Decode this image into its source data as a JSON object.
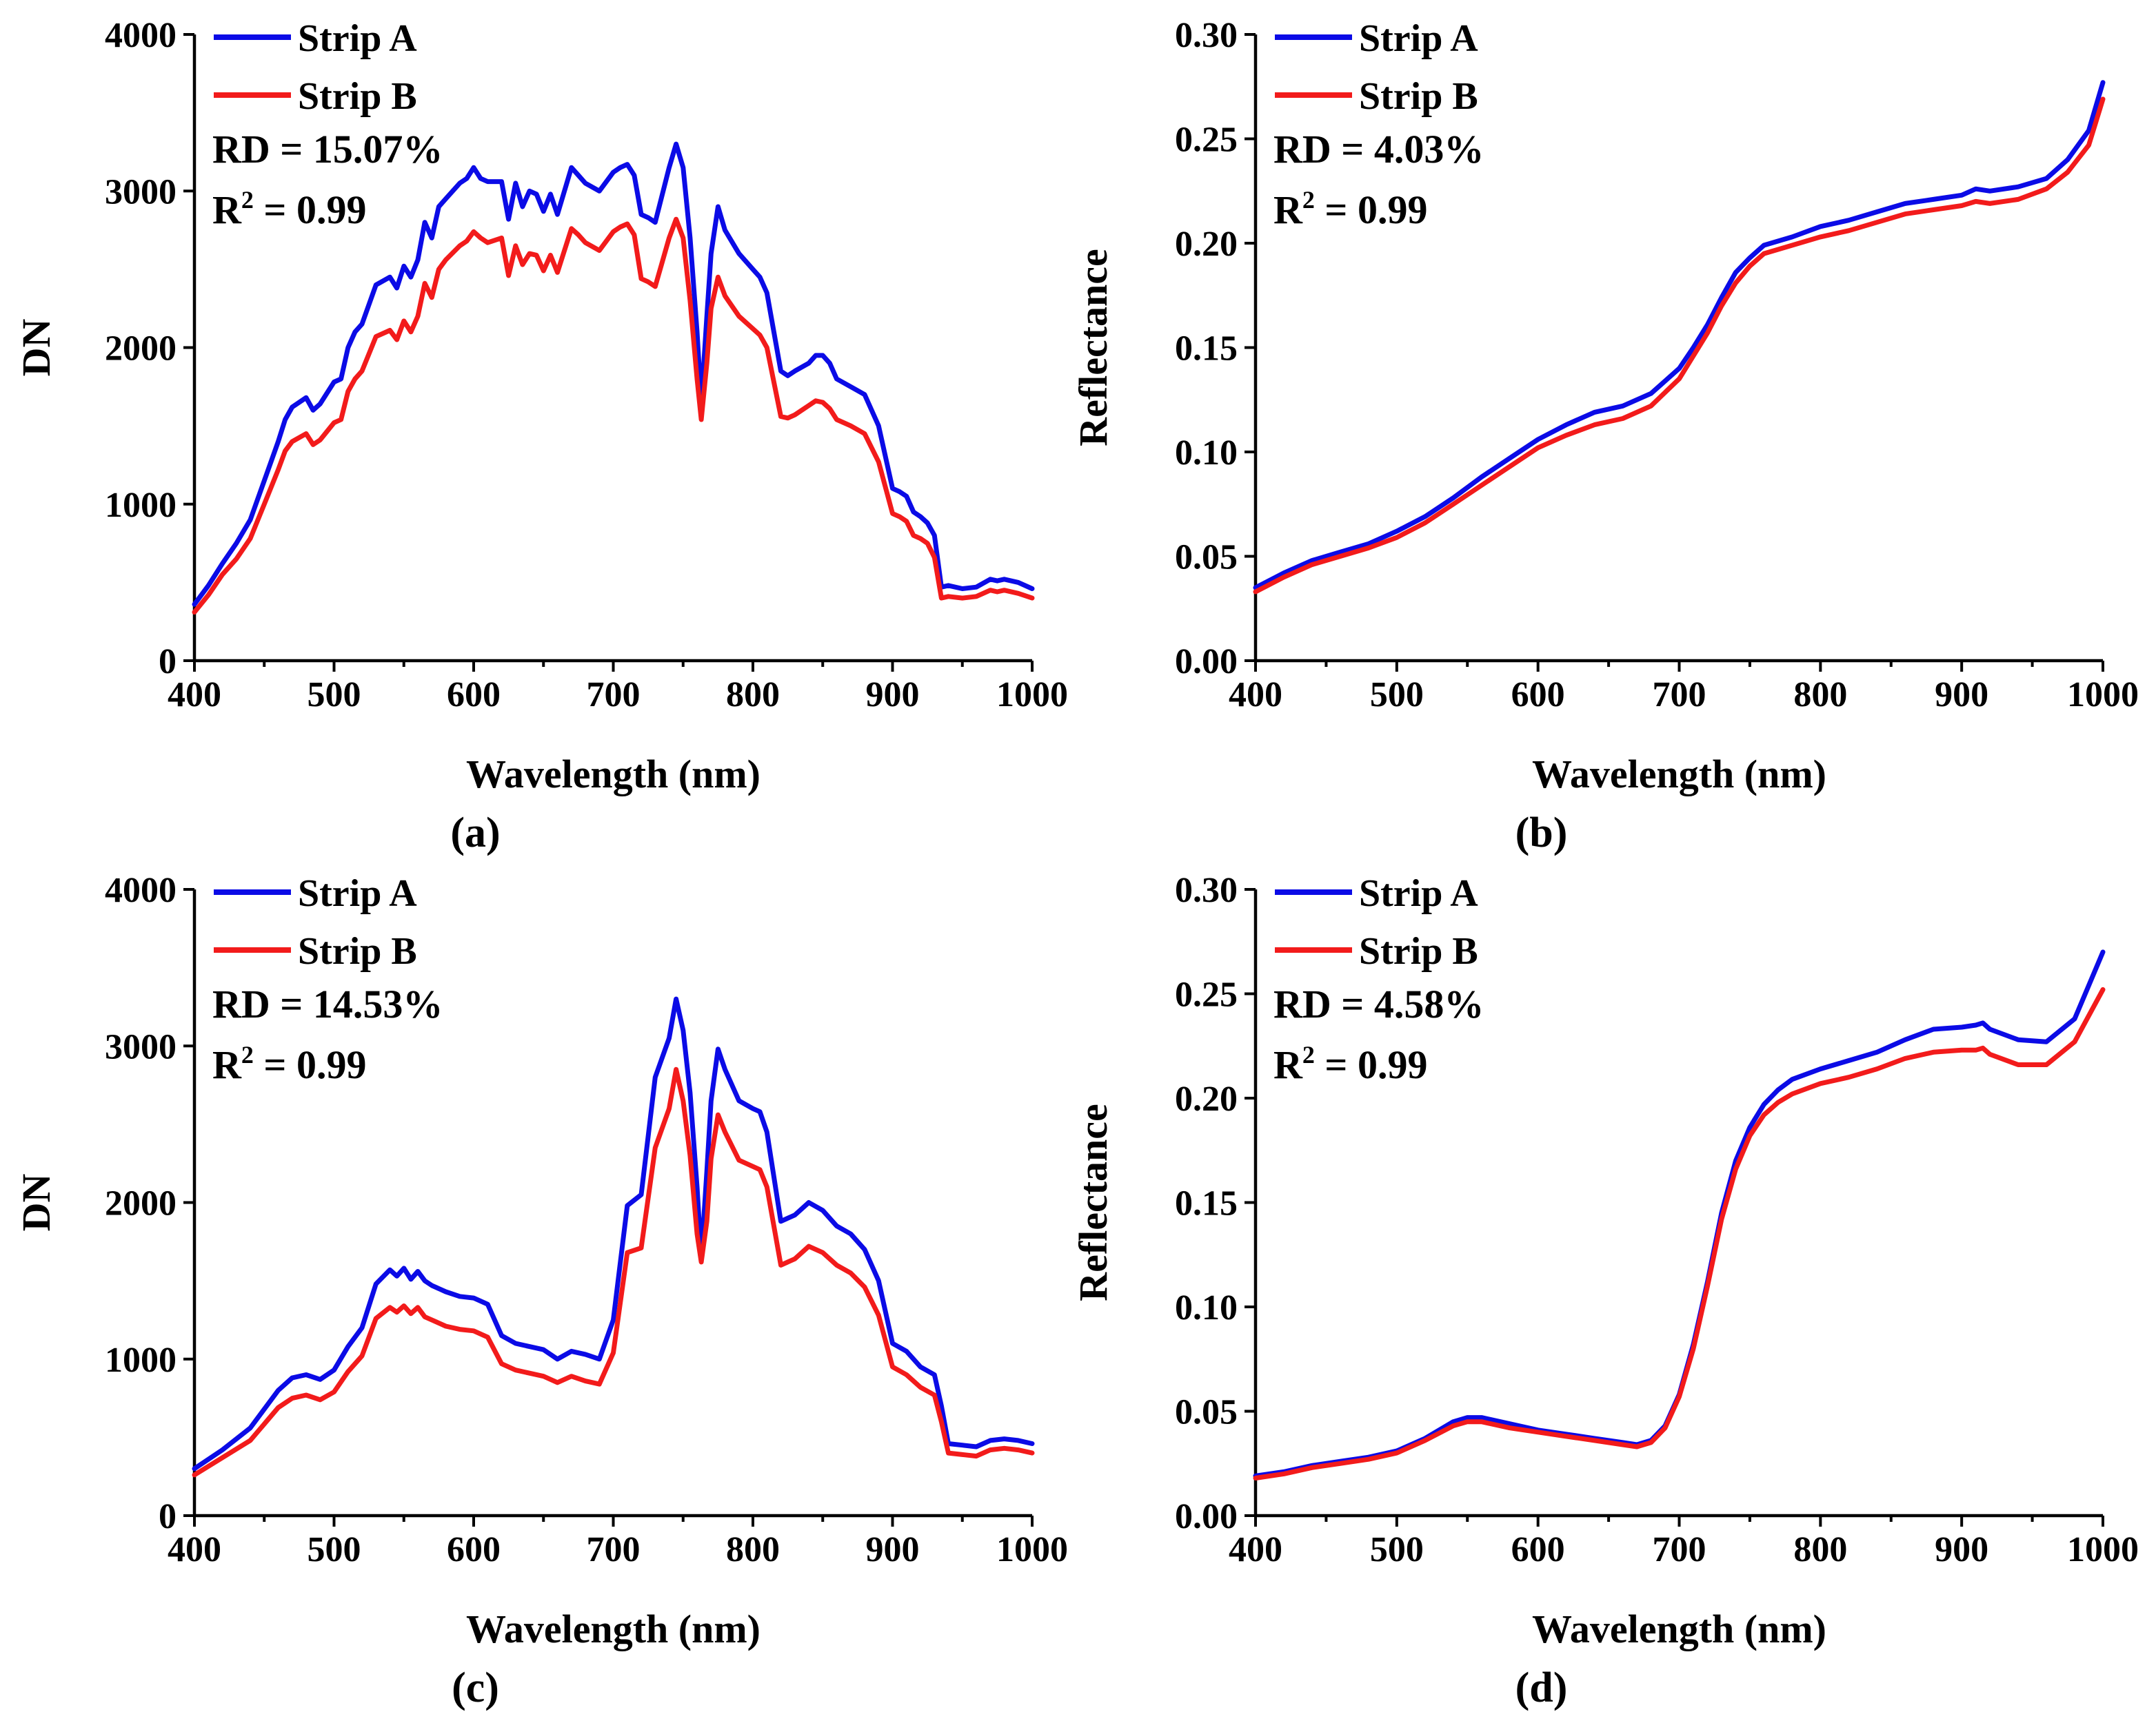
{
  "colors": {
    "strip_a": "#0b0be6",
    "strip_b": "#f21b1b"
  },
  "chart_data": [
    {
      "panel": "(a)",
      "type": "line",
      "xlabel": "Wavelength (nm)",
      "ylabel": "DN",
      "xlim": [
        400,
        1000
      ],
      "ylim": [
        0,
        4000
      ],
      "xticks": [
        400,
        500,
        600,
        700,
        800,
        900,
        1000
      ],
      "yticks": [
        0,
        1000,
        2000,
        3000,
        4000
      ],
      "ytick_labels": [
        "0",
        "1000",
        "2000",
        "3000",
        "4000"
      ],
      "legend": [
        "Strip A",
        "Strip B"
      ],
      "annotations": {
        "rd": "RD = 15.07%",
        "r2_prefix": "R",
        "r2_sup": "2",
        "r2_suffix": " = 0.99"
      },
      "x": [
        400,
        410,
        420,
        430,
        440,
        450,
        460,
        465,
        470,
        480,
        485,
        490,
        500,
        505,
        510,
        515,
        520,
        530,
        540,
        545,
        550,
        555,
        560,
        565,
        570,
        575,
        580,
        590,
        595,
        600,
        605,
        610,
        620,
        625,
        630,
        635,
        640,
        645,
        650,
        655,
        660,
        670,
        675,
        680,
        690,
        700,
        705,
        710,
        715,
        720,
        725,
        730,
        740,
        745,
        750,
        755,
        760,
        763,
        767,
        770,
        775,
        780,
        790,
        800,
        805,
        810,
        820,
        825,
        830,
        840,
        845,
        850,
        855,
        860,
        870,
        880,
        890,
        900,
        905,
        910,
        915,
        920,
        925,
        930,
        935,
        940,
        950,
        960,
        970,
        975,
        980,
        990,
        1000
      ],
      "series": [
        {
          "name": "Strip A",
          "values": [
            360,
            480,
            620,
            750,
            900,
            1150,
            1400,
            1540,
            1620,
            1680,
            1600,
            1640,
            1780,
            1800,
            2000,
            2100,
            2150,
            2400,
            2450,
            2380,
            2520,
            2450,
            2560,
            2800,
            2700,
            2900,
            2950,
            3050,
            3080,
            3150,
            3080,
            3060,
            3060,
            2820,
            3050,
            2900,
            3000,
            2980,
            2870,
            2980,
            2850,
            3150,
            3100,
            3050,
            3000,
            3120,
            3150,
            3170,
            3100,
            2850,
            2830,
            2800,
            3150,
            3300,
            3150,
            2700,
            2100,
            1650,
            2200,
            2600,
            2900,
            2750,
            2600,
            2500,
            2450,
            2350,
            1850,
            1820,
            1850,
            1900,
            1950,
            1950,
            1900,
            1800,
            1750,
            1700,
            1500,
            1100,
            1080,
            1050,
            950,
            920,
            880,
            800,
            470,
            480,
            460,
            470,
            520,
            510,
            520,
            500,
            460
          ]
        },
        {
          "name": "Strip B",
          "values": [
            310,
            420,
            550,
            650,
            780,
            1000,
            1220,
            1340,
            1400,
            1450,
            1380,
            1410,
            1520,
            1540,
            1720,
            1800,
            1850,
            2070,
            2110,
            2050,
            2170,
            2100,
            2200,
            2410,
            2320,
            2500,
            2560,
            2650,
            2680,
            2740,
            2700,
            2670,
            2700,
            2460,
            2650,
            2530,
            2600,
            2590,
            2490,
            2590,
            2480,
            2760,
            2720,
            2670,
            2620,
            2740,
            2770,
            2790,
            2720,
            2440,
            2420,
            2390,
            2700,
            2820,
            2700,
            2300,
            1800,
            1540,
            1900,
            2250,
            2450,
            2330,
            2200,
            2120,
            2080,
            2000,
            1560,
            1550,
            1570,
            1630,
            1660,
            1650,
            1610,
            1540,
            1500,
            1450,
            1270,
            940,
            920,
            890,
            800,
            780,
            750,
            660,
            400,
            410,
            400,
            410,
            450,
            440,
            450,
            430,
            400
          ]
        }
      ]
    },
    {
      "panel": "(b)",
      "type": "line",
      "xlabel": "Wavelength (nm)",
      "ylabel": "Reflectance",
      "xlim": [
        400,
        1000
      ],
      "ylim": [
        0,
        0.3
      ],
      "xticks": [
        400,
        500,
        600,
        700,
        800,
        900,
        1000
      ],
      "yticks": [
        0,
        0.05,
        0.1,
        0.15,
        0.2,
        0.25,
        0.3
      ],
      "ytick_labels": [
        "0.00",
        "0.05",
        "0.10",
        "0.15",
        "0.20",
        "0.25",
        "0.30"
      ],
      "legend": [
        "Strip A",
        "Strip B"
      ],
      "annotations": {
        "rd": "RD = 4.03%",
        "r2_prefix": "R",
        "r2_sup": "2",
        "r2_suffix": " = 0.99"
      },
      "x": [
        400,
        420,
        440,
        460,
        480,
        500,
        520,
        540,
        560,
        580,
        600,
        620,
        640,
        660,
        680,
        700,
        710,
        720,
        730,
        740,
        750,
        760,
        780,
        800,
        820,
        840,
        860,
        880,
        900,
        910,
        920,
        940,
        960,
        975,
        990,
        1000
      ],
      "series": [
        {
          "name": "Strip A",
          "values": [
            0.035,
            0.042,
            0.048,
            0.052,
            0.056,
            0.062,
            0.069,
            0.078,
            0.088,
            0.097,
            0.106,
            0.113,
            0.119,
            0.122,
            0.128,
            0.14,
            0.15,
            0.161,
            0.174,
            0.186,
            0.193,
            0.199,
            0.203,
            0.208,
            0.211,
            0.215,
            0.219,
            0.221,
            0.223,
            0.226,
            0.225,
            0.227,
            0.231,
            0.24,
            0.254,
            0.277
          ]
        },
        {
          "name": "Strip B",
          "values": [
            0.033,
            0.04,
            0.046,
            0.05,
            0.054,
            0.059,
            0.066,
            0.075,
            0.084,
            0.093,
            0.102,
            0.108,
            0.113,
            0.116,
            0.122,
            0.135,
            0.146,
            0.157,
            0.17,
            0.181,
            0.189,
            0.195,
            0.199,
            0.203,
            0.206,
            0.21,
            0.214,
            0.216,
            0.218,
            0.22,
            0.219,
            0.221,
            0.226,
            0.234,
            0.247,
            0.269
          ]
        }
      ]
    },
    {
      "panel": "(c)",
      "type": "line",
      "xlabel": "Wavelength (nm)",
      "ylabel": "DN",
      "xlim": [
        400,
        1000
      ],
      "ylim": [
        0,
        4000
      ],
      "xticks": [
        400,
        500,
        600,
        700,
        800,
        900,
        1000
      ],
      "yticks": [
        0,
        1000,
        2000,
        3000,
        4000
      ],
      "ytick_labels": [
        "0",
        "1000",
        "2000",
        "3000",
        "4000"
      ],
      "legend": [
        "Strip A",
        "Strip B"
      ],
      "annotations": {
        "rd": "RD = 14.53%",
        "r2_prefix": "R",
        "r2_sup": "2",
        "r2_suffix": " = 0.99"
      },
      "x": [
        400,
        420,
        440,
        460,
        470,
        480,
        490,
        500,
        510,
        520,
        530,
        540,
        545,
        550,
        555,
        560,
        565,
        570,
        580,
        590,
        600,
        610,
        620,
        630,
        640,
        650,
        660,
        670,
        680,
        690,
        700,
        710,
        720,
        730,
        740,
        745,
        750,
        755,
        760,
        763,
        767,
        770,
        775,
        780,
        790,
        800,
        805,
        810,
        820,
        830,
        840,
        850,
        860,
        870,
        880,
        890,
        900,
        910,
        920,
        930,
        935,
        940,
        950,
        960,
        970,
        980,
        990,
        1000
      ],
      "series": [
        {
          "name": "Strip A",
          "values": [
            300,
            420,
            560,
            800,
            880,
            900,
            870,
            930,
            1080,
            1200,
            1480,
            1570,
            1530,
            1580,
            1510,
            1560,
            1500,
            1470,
            1430,
            1400,
            1390,
            1350,
            1150,
            1100,
            1080,
            1060,
            1000,
            1050,
            1030,
            1000,
            1250,
            1980,
            2050,
            2800,
            3050,
            3300,
            3100,
            2700,
            2100,
            1650,
            2200,
            2650,
            2980,
            2850,
            2650,
            2600,
            2580,
            2450,
            1880,
            1920,
            2000,
            1950,
            1850,
            1800,
            1700,
            1500,
            1100,
            1050,
            950,
            900,
            700,
            460,
            450,
            440,
            480,
            490,
            480,
            460
          ]
        },
        {
          "name": "Strip B",
          "values": [
            260,
            370,
            480,
            690,
            750,
            770,
            740,
            790,
            920,
            1020,
            1260,
            1330,
            1300,
            1340,
            1290,
            1330,
            1270,
            1250,
            1210,
            1190,
            1180,
            1140,
            970,
            930,
            910,
            890,
            850,
            890,
            860,
            840,
            1040,
            1680,
            1710,
            2350,
            2600,
            2850,
            2650,
            2300,
            1800,
            1620,
            1880,
            2280,
            2560,
            2450,
            2270,
            2230,
            2210,
            2100,
            1600,
            1640,
            1720,
            1680,
            1600,
            1550,
            1460,
            1280,
            950,
            900,
            820,
            770,
            600,
            400,
            390,
            380,
            420,
            430,
            420,
            400
          ]
        }
      ]
    },
    {
      "panel": "(d)",
      "type": "line",
      "xlabel": "Wavelength (nm)",
      "ylabel": "Reflectance",
      "xlim": [
        400,
        1000
      ],
      "ylim": [
        0,
        0.3
      ],
      "xticks": [
        400,
        500,
        600,
        700,
        800,
        900,
        1000
      ],
      "yticks": [
        0,
        0.05,
        0.1,
        0.15,
        0.2,
        0.25,
        0.3
      ],
      "ytick_labels": [
        "0.00",
        "0.05",
        "0.10",
        "0.15",
        "0.20",
        "0.25",
        "0.30"
      ],
      "legend": [
        "Strip A",
        "Strip B"
      ],
      "annotations": {
        "rd": "RD = 4.58%",
        "r2_prefix": "R",
        "r2_sup": "2",
        "r2_suffix": " = 0.99"
      },
      "x": [
        400,
        420,
        440,
        460,
        480,
        500,
        520,
        540,
        550,
        560,
        580,
        600,
        620,
        640,
        660,
        670,
        680,
        690,
        700,
        710,
        720,
        730,
        740,
        750,
        760,
        770,
        780,
        800,
        820,
        840,
        860,
        880,
        900,
        910,
        915,
        920,
        940,
        960,
        980,
        1000
      ],
      "series": [
        {
          "name": "Strip A",
          "values": [
            0.019,
            0.021,
            0.024,
            0.026,
            0.028,
            0.031,
            0.037,
            0.045,
            0.047,
            0.047,
            0.044,
            0.041,
            0.039,
            0.037,
            0.035,
            0.034,
            0.036,
            0.043,
            0.058,
            0.082,
            0.112,
            0.145,
            0.17,
            0.186,
            0.197,
            0.204,
            0.209,
            0.214,
            0.218,
            0.222,
            0.228,
            0.233,
            0.234,
            0.235,
            0.236,
            0.233,
            0.228,
            0.227,
            0.238,
            0.27
          ]
        },
        {
          "name": "Strip B",
          "values": [
            0.018,
            0.02,
            0.023,
            0.025,
            0.027,
            0.03,
            0.036,
            0.043,
            0.045,
            0.045,
            0.042,
            0.04,
            0.038,
            0.036,
            0.034,
            0.033,
            0.035,
            0.042,
            0.057,
            0.08,
            0.11,
            0.142,
            0.166,
            0.182,
            0.192,
            0.198,
            0.202,
            0.207,
            0.21,
            0.214,
            0.219,
            0.222,
            0.223,
            0.223,
            0.224,
            0.221,
            0.216,
            0.216,
            0.227,
            0.252
          ]
        }
      ]
    }
  ]
}
